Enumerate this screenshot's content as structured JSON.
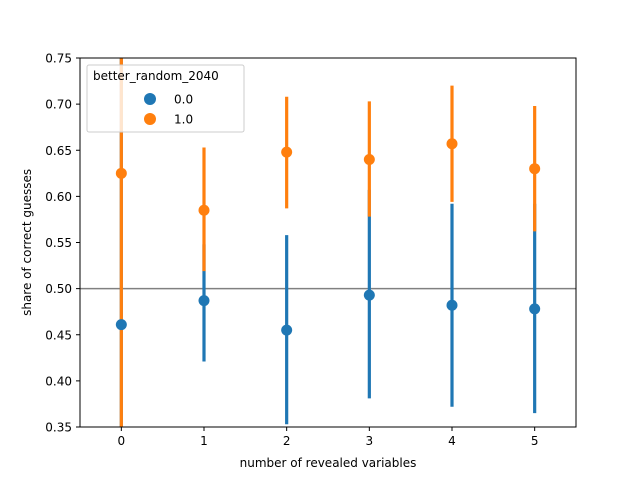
{
  "chart_data": {
    "type": "scatter",
    "xlabel": "number of revealed variables",
    "ylabel": "share of correct guesses",
    "categories": [
      "0",
      "1",
      "2",
      "3",
      "4",
      "5"
    ],
    "xlim": [
      -0.5,
      5.5
    ],
    "ylim": [
      0.35,
      0.75
    ],
    "yticks": [
      "0.35",
      "0.40",
      "0.45",
      "0.50",
      "0.55",
      "0.60",
      "0.65",
      "0.70",
      "0.75"
    ],
    "reference_line": 0.5,
    "grid": false,
    "legend": {
      "title": "better_random_2040",
      "placement": "top-left"
    },
    "series": [
      {
        "name": "0.0",
        "color": "#1f77b4",
        "values": [
          0.461,
          0.487,
          0.455,
          0.493,
          0.482,
          0.478
        ],
        "ci_low": [
          0.35,
          0.421,
          0.353,
          0.381,
          0.372,
          0.365
        ],
        "ci_high": [
          0.75,
          0.548,
          0.558,
          0.607,
          0.592,
          0.592
        ]
      },
      {
        "name": "1.0",
        "color": "#ff7f0e",
        "values": [
          0.625,
          0.585,
          0.648,
          0.64,
          0.657,
          0.63
        ],
        "ci_low": [
          0.35,
          0.519,
          0.587,
          0.578,
          0.594,
          0.562
        ],
        "ci_high": [
          0.75,
          0.653,
          0.708,
          0.703,
          0.72,
          0.698
        ]
      }
    ],
    "reference_color": "#808080"
  }
}
